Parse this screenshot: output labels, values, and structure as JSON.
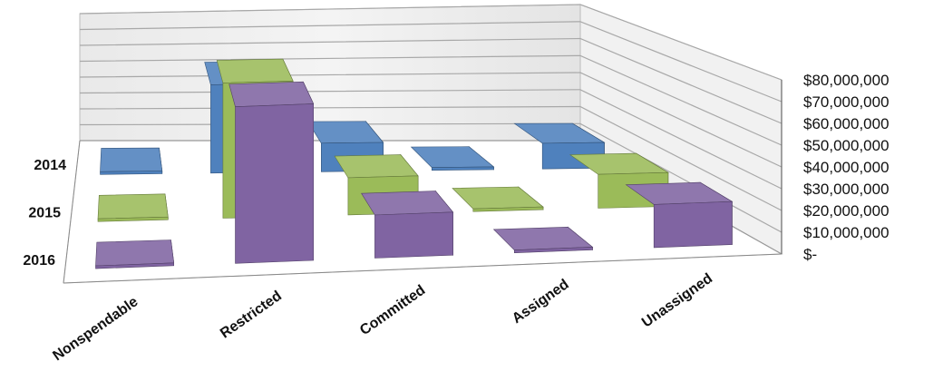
{
  "chart_data": {
    "type": "bar",
    "subtype": "3d-column",
    "categories": [
      "Nonspendable",
      "Restricted",
      "Committed",
      "Assigned",
      "Unassigned"
    ],
    "series": [
      {
        "name": "2014",
        "color": "#4f81bd",
        "values": [
          500000,
          62000000,
          20000000,
          1000000,
          18000000
        ]
      },
      {
        "name": "2015",
        "color": "#9bbb59",
        "values": [
          500000,
          80000000,
          22000000,
          1000000,
          20000000
        ]
      },
      {
        "name": "2016",
        "color": "#8064a2",
        "values": [
          500000,
          80000000,
          22000000,
          500000,
          22000000
        ]
      }
    ],
    "y_ticks": [
      "$-",
      "$10,000,000",
      "$20,000,000",
      "$30,000,000",
      "$40,000,000",
      "$50,000,000",
      "$60,000,000",
      "$70,000,000",
      "$80,000,000"
    ],
    "ylim": [
      0,
      80000000
    ],
    "grid": true,
    "title": "",
    "xlabel": "",
    "ylabel": ""
  }
}
